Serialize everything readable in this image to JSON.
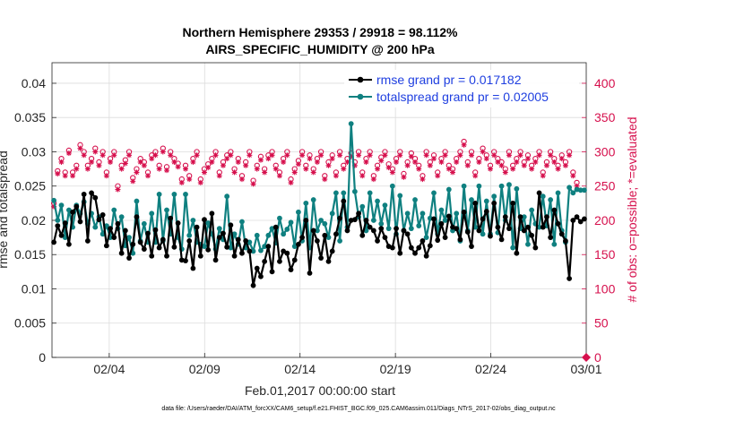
{
  "chart_data": {
    "type": "line",
    "title_line1": "Northern Hemisphere 29353 / 29918 = 98.112%",
    "title_line2": "AIRS_SPECIFIC_HUMIDITY @ 200 hPa",
    "xlabel": "Feb.01,2017 00:00:00 start",
    "ylabel_left": "rmse and totalspread",
    "ylabel_right": "# of obs: o=possible; *=evaluated",
    "footnote": "data file: /Users/raeder/DAI/ATM_forcXX/CAM6_setup/f.e21.FHIST_BGC.f09_025.CAM6assim.011/Diags_NTrS_2017-02/obs_diag_output.nc",
    "x_range_days": [
      0,
      28
    ],
    "ylim_left": [
      0,
      0.043
    ],
    "ylim_right": [
      0,
      430
    ],
    "x_ticks": [
      {
        "day": 3,
        "label": "02/04"
      },
      {
        "day": 8,
        "label": "02/09"
      },
      {
        "day": 13,
        "label": "02/14"
      },
      {
        "day": 18,
        "label": "02/19"
      },
      {
        "day": 23,
        "label": "02/24"
      },
      {
        "day": 28,
        "label": "03/01"
      }
    ],
    "y_ticks_left": [
      {
        "v": 0,
        "label": "0"
      },
      {
        "v": 0.005,
        "label": "0.005"
      },
      {
        "v": 0.01,
        "label": "0.01"
      },
      {
        "v": 0.015,
        "label": "0.015"
      },
      {
        "v": 0.02,
        "label": "0.02"
      },
      {
        "v": 0.025,
        "label": "0.025"
      },
      {
        "v": 0.03,
        "label": "0.03"
      },
      {
        "v": 0.035,
        "label": "0.035"
      },
      {
        "v": 0.04,
        "label": "0.04"
      }
    ],
    "y_ticks_right": [
      {
        "v": 0,
        "label": "0"
      },
      {
        "v": 50,
        "label": "50"
      },
      {
        "v": 100,
        "label": "100"
      },
      {
        "v": 150,
        "label": "150"
      },
      {
        "v": 200,
        "label": "200"
      },
      {
        "v": 250,
        "label": "250"
      },
      {
        "v": 300,
        "label": "300"
      },
      {
        "v": 350,
        "label": "350"
      },
      {
        "v": 400,
        "label": "400"
      }
    ],
    "legend": [
      {
        "name": "rmse grand pr = 0.017182",
        "color": "#000000"
      },
      {
        "name": "totalspread grand pr = 0.02005",
        "color": "#0f8080"
      }
    ],
    "colors": {
      "rmse": "#000000",
      "spread": "#0f8080",
      "obs": "#d6104d",
      "grid": "#dcdcdc"
    },
    "series": [
      {
        "name": "rmse",
        "values": [
          0.0168,
          0.0192,
          0.0178,
          0.0196,
          0.0165,
          0.0212,
          0.022,
          0.0198,
          0.0238,
          0.017,
          0.024,
          0.0233,
          0.0201,
          0.0208,
          0.0163,
          0.0188,
          0.0175,
          0.0195,
          0.0152,
          0.0185,
          0.0145,
          0.0165,
          0.0205,
          0.0168,
          0.0158,
          0.0181,
          0.0148,
          0.0186,
          0.016,
          0.0172,
          0.0148,
          0.0203,
          0.0161,
          0.0196,
          0.0142,
          0.0141,
          0.017,
          0.013,
          0.019,
          0.0148,
          0.0201,
          0.0157,
          0.021,
          0.0142,
          0.0175,
          0.0181,
          0.0161,
          0.0193,
          0.0148,
          0.0172,
          0.0152,
          0.017,
          0.0155,
          0.0105,
          0.013,
          0.0118,
          0.014,
          0.0162,
          0.0125,
          0.019,
          0.014,
          0.0155,
          0.0152,
          0.0128,
          0.0142,
          0.0165,
          0.0175,
          0.02,
          0.0123,
          0.0185,
          0.017,
          0.0145,
          0.0178,
          0.014,
          0.0155,
          0.018,
          0.0203,
          0.0228,
          0.0185,
          0.02,
          0.0201,
          0.021,
          0.0178,
          0.02,
          0.019,
          0.0185,
          0.017,
          0.0188,
          0.0175,
          0.0162,
          0.016,
          0.0188,
          0.0152,
          0.0185,
          0.018,
          0.016,
          0.0152,
          0.016,
          0.017,
          0.0148,
          0.0163,
          0.0202,
          0.0171,
          0.0195,
          0.0175,
          0.0206,
          0.019,
          0.0188,
          0.0172,
          0.0212,
          0.0183,
          0.0162,
          0.0225,
          0.0185,
          0.0202,
          0.0213,
          0.0177,
          0.0225,
          0.019,
          0.0172,
          0.0205,
          0.0188,
          0.0225,
          0.0152,
          0.0205,
          0.0185,
          0.019,
          0.0178,
          0.016,
          0.024,
          0.019,
          0.0205,
          0.0175,
          0.0215,
          0.0195,
          0.018,
          0.017,
          0.0115,
          0.02,
          0.0205,
          0.0198,
          0.0202
        ]
      },
      {
        "name": "totalspread",
        "values": [
          0.0229,
          0.02,
          0.0222,
          0.0175,
          0.0215,
          0.019,
          0.0222,
          0.021,
          0.0227,
          0.0195,
          0.021,
          0.019,
          0.0205,
          0.018,
          0.0192,
          0.0175,
          0.0215,
          0.0188,
          0.0205,
          0.0163,
          0.0175,
          0.0152,
          0.0228,
          0.017,
          0.0195,
          0.0168,
          0.021,
          0.0168,
          0.0238,
          0.017,
          0.0215,
          0.018,
          0.0238,
          0.0175,
          0.0158,
          0.0238,
          0.0178,
          0.02,
          0.0168,
          0.0165,
          0.0162,
          0.0196,
          0.018,
          0.0158,
          0.0188,
          0.0172,
          0.0235,
          0.016,
          0.018,
          0.0165,
          0.0198,
          0.016,
          0.0168,
          0.0155,
          0.0178,
          0.0156,
          0.0162,
          0.0178,
          0.0188,
          0.0167,
          0.0203,
          0.018,
          0.0187,
          0.0197,
          0.0162,
          0.0212,
          0.017,
          0.0225,
          0.016,
          0.023,
          0.0185,
          0.02,
          0.0195,
          0.0175,
          0.021,
          0.024,
          0.017,
          0.024,
          0.019,
          0.0341,
          0.0242,
          0.0205,
          0.022,
          0.0185,
          0.024,
          0.02,
          0.0228,
          0.0195,
          0.0222,
          0.0188,
          0.025,
          0.018,
          0.0236,
          0.0185,
          0.021,
          0.0188,
          0.023,
          0.0192,
          0.021,
          0.0175,
          0.0203,
          0.024,
          0.018,
          0.0215,
          0.02,
          0.0245,
          0.0185,
          0.021,
          0.017,
          0.025,
          0.0185,
          0.023,
          0.019,
          0.025,
          0.018,
          0.0228,
          0.018,
          0.0235,
          0.0182,
          0.025,
          0.02,
          0.0252,
          0.016,
          0.0246,
          0.0188,
          0.0205,
          0.0165,
          0.0215,
          0.0195,
          0.019,
          0.0235,
          0.0192,
          0.023,
          0.0165,
          0.024,
          0.0185,
          0.0168,
          0.0248,
          0.024,
          0.0245,
          0.0244,
          0.0244
        ]
      },
      {
        "name": "obs_possible",
        "values": [
          225,
          272,
          290,
          270,
          302,
          270,
          280,
          310,
          300,
          280,
          290,
          305,
          285,
          300,
          270,
          290,
          300,
          250,
          280,
          288,
          300,
          262,
          275,
          290,
          285,
          270,
          295,
          300,
          280,
          305,
          278,
          300,
          290,
          283,
          260,
          280,
          265,
          290,
          300,
          260,
          275,
          282,
          290,
          300,
          270,
          285,
          295,
          300,
          275,
          290,
          265,
          285,
          300,
          258,
          280,
          293,
          275,
          295,
          300,
          280,
          270,
          290,
          300,
          260,
          275,
          287,
          300,
          280,
          295,
          275,
          290,
          300,
          265,
          285,
          295,
          270,
          300,
          280,
          290,
          298,
          285,
          300,
          270,
          290,
          300,
          265,
          280,
          292,
          300,
          282,
          275,
          290,
          300,
          268,
          285,
          298,
          290,
          280,
          265,
          300,
          285,
          295,
          270,
          290,
          300,
          280,
          275,
          290,
          300,
          315,
          285,
          300,
          270,
          290,
          305,
          295,
          280,
          300,
          290,
          285,
          275,
          300,
          280,
          290,
          300,
          285,
          295,
          280,
          290,
          300,
          270,
          285,
          300,
          290,
          280,
          295,
          285,
          300,
          270,
          255
        ]
      },
      {
        "name": "obs_evaluated",
        "values": [
          220,
          268,
          285,
          265,
          298,
          265,
          275,
          305,
          295,
          275,
          285,
          300,
          280,
          295,
          265,
          285,
          295,
          245,
          275,
          283,
          295,
          257,
          270,
          285,
          280,
          265,
          290,
          295,
          275,
          300,
          273,
          295,
          285,
          278,
          255,
          275,
          260,
          285,
          295,
          255,
          270,
          277,
          285,
          295,
          265,
          280,
          290,
          295,
          270,
          285,
          260,
          280,
          295,
          253,
          275,
          288,
          270,
          290,
          295,
          275,
          265,
          285,
          295,
          255,
          270,
          282,
          295,
          275,
          290,
          270,
          285,
          295,
          260,
          280,
          290,
          265,
          295,
          275,
          285,
          293,
          280,
          295,
          265,
          285,
          295,
          260,
          275,
          287,
          295,
          277,
          270,
          285,
          295,
          263,
          280,
          293,
          285,
          275,
          260,
          295,
          280,
          290,
          265,
          285,
          295,
          275,
          270,
          285,
          295,
          310,
          280,
          295,
          265,
          285,
          300,
          290,
          275,
          295,
          285,
          280,
          270,
          295,
          275,
          285,
          295,
          280,
          290,
          275,
          285,
          295,
          265,
          280,
          295,
          285,
          275,
          290,
          280,
          295,
          265,
          250
        ]
      }
    ]
  }
}
